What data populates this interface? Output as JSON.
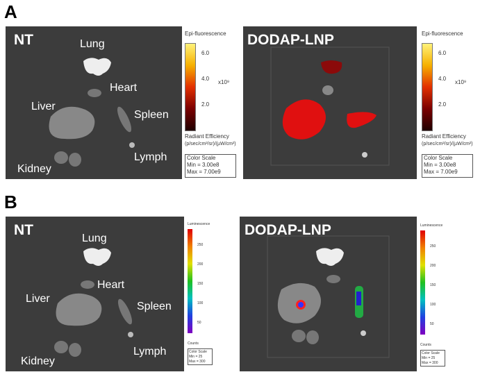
{
  "panels": [
    {
      "label": "A",
      "images": [
        {
          "title": "NT",
          "organs": [
            "Lung",
            "Heart",
            "Liver",
            "Spleen",
            "Lymph",
            "Kidney"
          ],
          "colorbar": {
            "title": "Epi-fluorescence",
            "ticks": [
              "6.0",
              "4.0",
              "2.0"
            ],
            "multiplier": "x10⁹",
            "unit_title": "Radiant Efficiency",
            "unit": "(p/sec/cm²/sr)/(µW/cm²)",
            "scale_title": "Color Scale",
            "min": "Min = 3.00e8",
            "max": "Max = 7.00e9"
          }
        },
        {
          "title": "DODAP-LNP",
          "colorbar": {
            "title": "Epi-fluorescence",
            "ticks": [
              "6.0",
              "4.0",
              "2.0"
            ],
            "multiplier": "x10⁹",
            "unit_title": "Radiant Efficiency",
            "unit": "(p/sec/cm²/sr)/(µW/cm²)",
            "scale_title": "Color Scale",
            "min": "Min = 3.00e8",
            "max": "Max = 7.00e9"
          }
        }
      ]
    },
    {
      "label": "B",
      "images": [
        {
          "title": "NT",
          "organs": [
            "Lung",
            "Heart",
            "Liver",
            "Spleen",
            "Lymph",
            "Kidney"
          ],
          "colorbar": {
            "title": "Luminescence",
            "ticks": [
              "250",
              "200",
              "150",
              "100",
              "50"
            ],
            "unit_title": "Counts",
            "scale_title": "Color Scale",
            "min": "Min = 25",
            "max": "Max = 300"
          }
        },
        {
          "title": "DODAP-LNP",
          "colorbar": {
            "title": "Luminescence",
            "ticks": [
              "250",
              "200",
              "150",
              "100",
              "50"
            ],
            "unit_title": "Counts",
            "scale_title": "Color Scale",
            "min": "Min = 25",
            "max": "Max = 300"
          }
        }
      ]
    }
  ]
}
